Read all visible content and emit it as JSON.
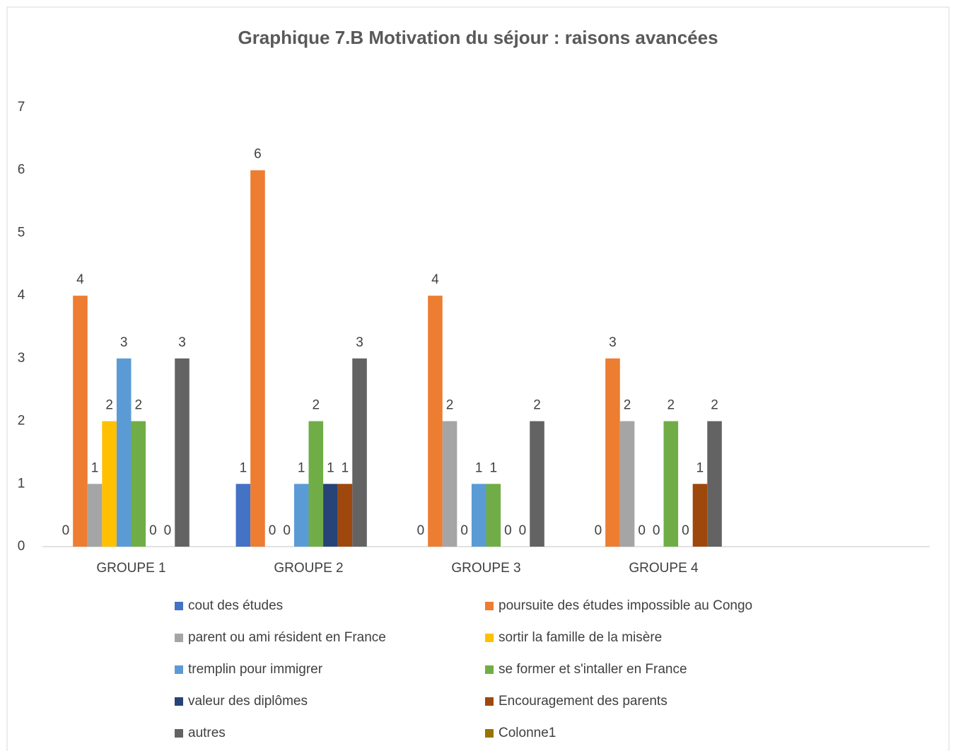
{
  "chart_data": {
    "type": "bar",
    "title": "Graphique 7.B Motivation du séjour : raisons avancées",
    "categories": [
      "GROUPE 1",
      "GROUPE 2",
      "GROUPE 3",
      "GROUPE 4",
      null
    ],
    "series": [
      {
        "name": "cout des études",
        "color": "#4472c4",
        "values": [
          0,
          1,
          0,
          0,
          null
        ]
      },
      {
        "name": "poursuite des études impossible au Congo",
        "color": "#ed7d31",
        "values": [
          4,
          6,
          4,
          3,
          null
        ]
      },
      {
        "name": "parent ou ami résident en France",
        "color": "#a5a5a5",
        "values": [
          1,
          0,
          2,
          2,
          null
        ]
      },
      {
        "name": "sortir la famille de la misère",
        "color": "#ffc000",
        "values": [
          2,
          0,
          0,
          0,
          null
        ]
      },
      {
        "name": "tremplin pour immigrer",
        "color": "#5b9bd5",
        "values": [
          3,
          1,
          1,
          0,
          null
        ]
      },
      {
        "name": "se former et s'intaller en France",
        "color": "#70ad47",
        "values": [
          2,
          2,
          1,
          2,
          null
        ]
      },
      {
        "name": "valeur des diplômes",
        "color": "#264478",
        "values": [
          0,
          1,
          0,
          0,
          null
        ]
      },
      {
        "name": "Encouragement des parents",
        "color": "#9e480e",
        "values": [
          0,
          1,
          0,
          1,
          null
        ]
      },
      {
        "name": "autres",
        "color": "#636363",
        "values": [
          3,
          3,
          2,
          2,
          null
        ]
      },
      {
        "name": "Colonne1",
        "color": "#997300",
        "values": [
          null,
          null,
          null,
          null,
          null
        ]
      }
    ],
    "ylim": [
      0,
      7
    ],
    "yticks": [
      0,
      1,
      2,
      3,
      4,
      5,
      6,
      7
    ],
    "grid": false,
    "legend": "bottom"
  }
}
